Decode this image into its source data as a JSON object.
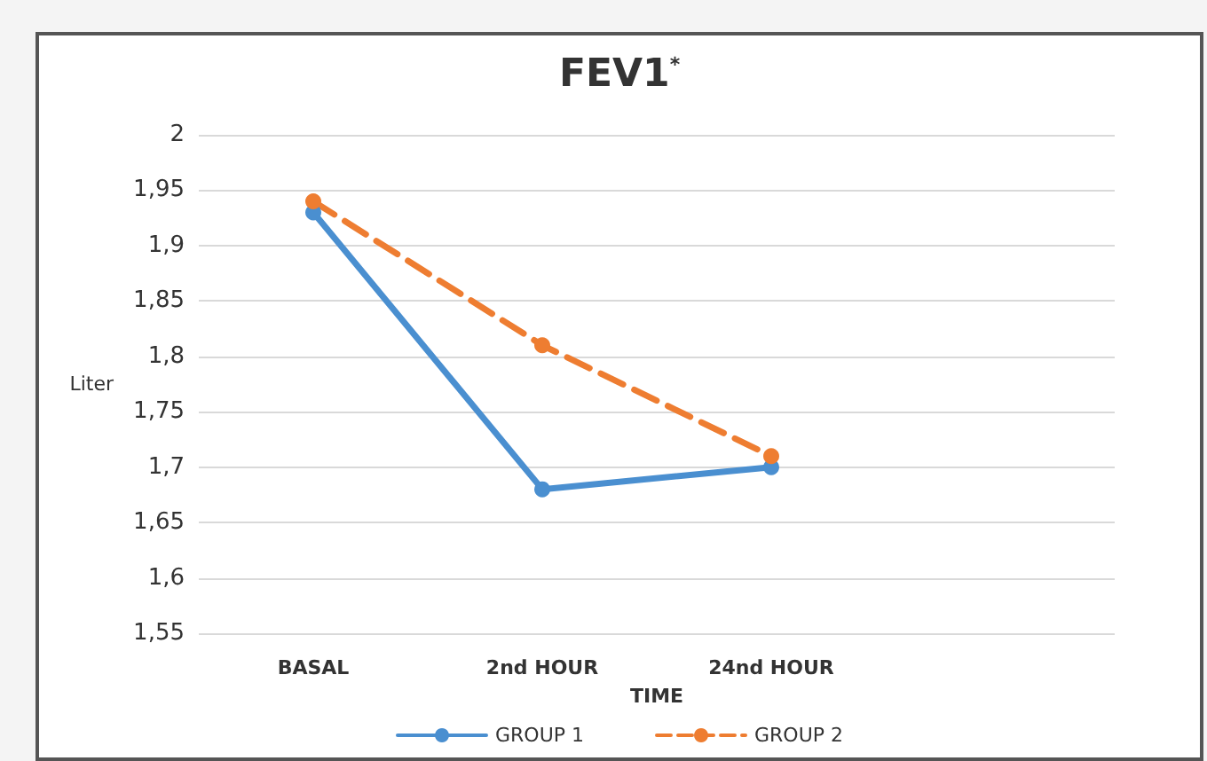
{
  "chart_data": {
    "type": "line",
    "title": "FEV1$^{*}$",
    "xlabel": "TIME",
    "ylabel": "Liter",
    "categories": [
      "BASAL",
      "2nd HOUR",
      "24nd HOUR",
      null
    ],
    "series": [
      {
        "name": "GROUP 1",
        "color": "#4a8fd0",
        "values": [
          1.93,
          1.68,
          1.7,
          null
        ],
        "line_style": "solid"
      },
      {
        "name": "GROUP 2",
        "color": "#ee7d31",
        "values": [
          1.94,
          1.81,
          1.71,
          null
        ],
        "line_style": "dashed"
      }
    ],
    "ylim": [
      1.55,
      2
    ],
    "yticks": [
      {
        "value": 1.55,
        "label": "1,55"
      },
      {
        "value": 1.6,
        "label": "1,6"
      },
      {
        "value": 1.65,
        "label": "1,65"
      },
      {
        "value": 1.7,
        "label": "1,7"
      },
      {
        "value": 1.75,
        "label": "1,75"
      },
      {
        "value": 1.8,
        "label": "1,8"
      },
      {
        "value": 1.85,
        "label": "1,85"
      },
      {
        "value": 1.9,
        "label": "1,9"
      },
      {
        "value": 1.95,
        "label": "1,95"
      },
      {
        "value": 2,
        "label": "2"
      }
    ],
    "grid": "y",
    "legend": "bottom",
    "marker": "circle"
  }
}
